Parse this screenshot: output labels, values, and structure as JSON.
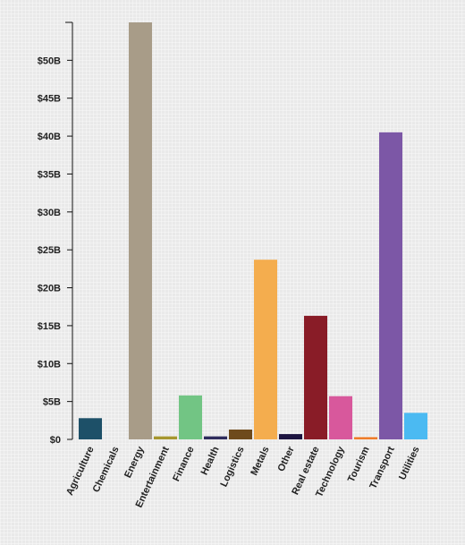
{
  "chart_data": {
    "type": "bar",
    "categories": [
      "Agriculture",
      "Chemicals",
      "Energy",
      "Entertainment",
      "Finance",
      "Health",
      "Logistics",
      "Metals",
      "Other",
      "Real estate",
      "Technology",
      "Tourism",
      "Transport",
      "Utilities"
    ],
    "values": [
      2.8,
      0,
      55,
      0.4,
      5.8,
      0.4,
      1.3,
      23.7,
      0.7,
      16.3,
      5.7,
      0.3,
      40.5,
      3.5
    ],
    "colors": [
      "#1d5068",
      "#6b8e23",
      "#a89c88",
      "#a6962e",
      "#72c584",
      "#2e2c5c",
      "#6e4a1c",
      "#f4ad4e",
      "#1c1440",
      "#891c27",
      "#d8589c",
      "#ef7d2a",
      "#7c57a6",
      "#4bbaf2"
    ],
    "ytick_labels": [
      "$0",
      "$5B",
      "$10B",
      "$15B",
      "$20B",
      "$25B",
      "$30B",
      "$35B",
      "$40B",
      "$45B",
      "$50B"
    ],
    "ytick_values": [
      0,
      5,
      10,
      15,
      20,
      25,
      30,
      35,
      40,
      45,
      50
    ],
    "ylim": [
      0,
      55
    ],
    "title": "",
    "xlabel": "",
    "ylabel": "",
    "grid": false,
    "legend": "none"
  }
}
